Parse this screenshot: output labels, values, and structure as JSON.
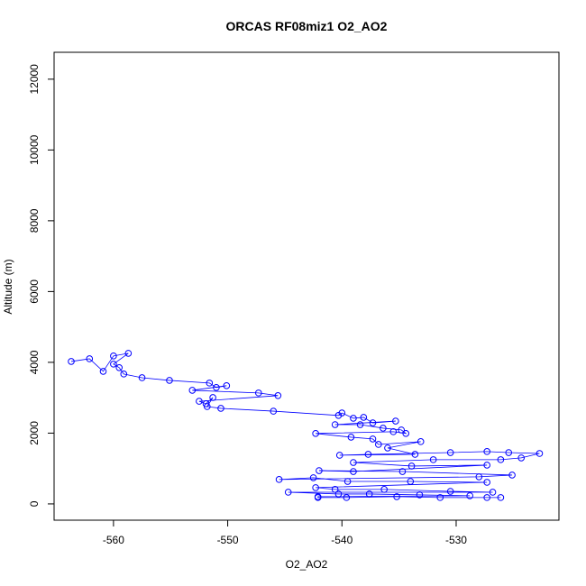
{
  "chart_data": {
    "type": "scatter",
    "title": "ORCAS RF08miz1 O2_AO2",
    "xlabel": "O2_AO2",
    "ylabel": "Altitude (m)",
    "color": "#0000ff",
    "lines": true,
    "x": [
      -563.7,
      -562.1,
      -560.9,
      -560,
      -558.7,
      -560,
      -559.5,
      -559.1,
      -557.5,
      -555.1,
      -551.6,
      -551,
      -550.1,
      -553.1,
      -547.3,
      -545.6,
      -552.5,
      -551.9,
      -551.3,
      -551.8,
      -550.6,
      -546,
      -540.3,
      -540,
      -539,
      -538.1,
      -537.3,
      -535.3,
      -540.6,
      -538.4,
      -536.4,
      -534.8,
      -534.4,
      -535.5,
      -542.3,
      -539.2,
      -537.3,
      -536.8,
      -533.1,
      -536,
      -533.6,
      -540.2,
      -537.7,
      -530.5,
      -527.3,
      -525.4,
      -522.7,
      -524.3,
      -526.1,
      -532,
      -539,
      -533.9,
      -527.3,
      -539,
      -542,
      -534.7,
      -525.1,
      -528,
      -545.5,
      -542.5,
      -539.5,
      -534,
      -527.3,
      -542.3,
      -540.6,
      -536.3,
      -530.5,
      -526.8,
      -544.7,
      -540.3,
      -537.6,
      -533.2,
      -528.8,
      -542.1,
      -542.1,
      -539.6,
      -535.2,
      -531.4,
      -527.3,
      -526.1
    ],
    "values": [
      4025,
      4100,
      3745,
      4180,
      4255,
      3950,
      3850,
      3670,
      3565,
      3490,
      3415,
      3290,
      3340,
      3210,
      3135,
      3060,
      2900,
      2830,
      3005,
      2750,
      2700,
      2620,
      2500,
      2570,
      2420,
      2445,
      2290,
      2340,
      2240,
      2240,
      2140,
      2090,
      1990,
      2040,
      1990,
      1885,
      1835,
      1680,
      1760,
      1580,
      1400,
      1375,
      1400,
      1450,
      1480,
      1450,
      1425,
      1300,
      1250,
      1250,
      1170,
      1070,
      1095,
      915,
      940,
      915,
      815,
      765,
      690,
      740,
      635,
      635,
      610,
      460,
      410,
      410,
      355,
      330,
      330,
      280,
      280,
      255,
      230,
      205,
      180,
      180,
      205,
      180,
      180,
      180
    ],
    "xlim": [
      -565.2,
      -521.0
    ],
    "ylim": [
      -460,
      12760
    ],
    "xticks": [
      -560,
      -550,
      -540,
      -530
    ],
    "yticks": [
      0,
      2000,
      4000,
      6000,
      8000,
      10000,
      12000
    ]
  }
}
